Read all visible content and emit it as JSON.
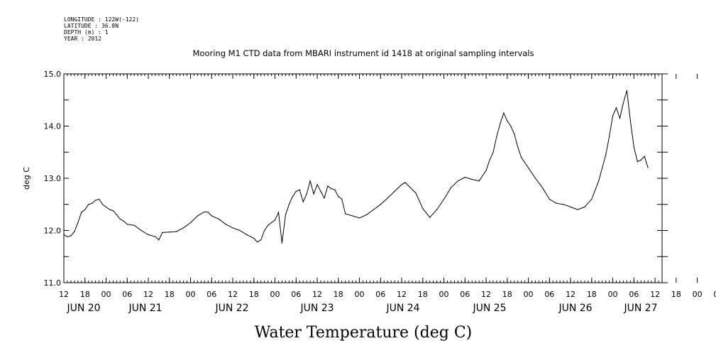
{
  "meta_lines": [
    "LONGITUDE : 122W(-122)",
    "LATITUDE : 36.8N",
    "DEPTH (m) : 1",
    "YEAR : 2012"
  ],
  "chart_data": {
    "type": "line",
    "title": "Mooring M1 CTD data from MBARI instrument id 1418 at original sampling intervals",
    "xlabel": "Water Temperature (deg C)",
    "ylabel": "deg C",
    "xlim": [
      "2012-06-20 12:00",
      "2012-06-27 14:00"
    ],
    "ylim": [
      11.0,
      15.0
    ],
    "y_ticks": [
      "11.0",
      "12.0",
      "13.0",
      "14.0",
      "15.0"
    ],
    "x_hour_ticks": [
      "12",
      "18",
      "00",
      "06",
      "12",
      "18",
      "00",
      "06",
      "12",
      "18",
      "00",
      "06",
      "12",
      "18",
      "00",
      "06",
      "12",
      "18",
      "00",
      "06",
      "12",
      "18",
      "00",
      "06",
      "12",
      "18",
      "00",
      "06",
      "12",
      "18",
      "00",
      "06"
    ],
    "x_day_labels": [
      "JUN 20",
      "JUN 21",
      "JUN 22",
      "JUN 23",
      "JUN 24",
      "JUN 25",
      "JUN 26",
      "JUN 27"
    ],
    "grid": false,
    "series": [
      {
        "values": [
          [
            "2012-06-20 12:00",
            11.92
          ],
          [
            "2012-06-20 13:00",
            11.88
          ],
          [
            "2012-06-20 14:00",
            11.9
          ],
          [
            "2012-06-20 15:00",
            11.98
          ],
          [
            "2012-06-20 16:00",
            12.15
          ],
          [
            "2012-06-20 17:00",
            12.35
          ],
          [
            "2012-06-20 18:00",
            12.4
          ],
          [
            "2012-06-20 19:00",
            12.5
          ],
          [
            "2012-06-20 20:00",
            12.52
          ],
          [
            "2012-06-20 21:00",
            12.58
          ],
          [
            "2012-06-20 22:00",
            12.6
          ],
          [
            "2012-06-20 23:00",
            12.5
          ],
          [
            "2012-06-21 00:00",
            12.45
          ],
          [
            "2012-06-21 01:00",
            12.4
          ],
          [
            "2012-06-21 02:00",
            12.38
          ],
          [
            "2012-06-21 03:00",
            12.3
          ],
          [
            "2012-06-21 04:00",
            12.22
          ],
          [
            "2012-06-21 05:00",
            12.18
          ],
          [
            "2012-06-21 06:00",
            12.12
          ],
          [
            "2012-06-21 08:00",
            12.1
          ],
          [
            "2012-06-21 10:00",
            12.0
          ],
          [
            "2012-06-21 12:00",
            11.92
          ],
          [
            "2012-06-21 14:00",
            11.88
          ],
          [
            "2012-06-21 15:00",
            11.82
          ],
          [
            "2012-06-21 16:00",
            11.96
          ],
          [
            "2012-06-21 18:00",
            11.97
          ],
          [
            "2012-06-21 20:00",
            11.98
          ],
          [
            "2012-06-21 22:00",
            12.05
          ],
          [
            "2012-06-22 00:00",
            12.15
          ],
          [
            "2012-06-22 02:00",
            12.28
          ],
          [
            "2012-06-22 04:00",
            12.36
          ],
          [
            "2012-06-22 05:00",
            12.35
          ],
          [
            "2012-06-22 06:00",
            12.28
          ],
          [
            "2012-06-22 08:00",
            12.22
          ],
          [
            "2012-06-22 10:00",
            12.12
          ],
          [
            "2012-06-22 12:00",
            12.05
          ],
          [
            "2012-06-22 14:00",
            12.0
          ],
          [
            "2012-06-22 16:00",
            11.92
          ],
          [
            "2012-06-22 18:00",
            11.85
          ],
          [
            "2012-06-22 19:00",
            11.78
          ],
          [
            "2012-06-22 20:00",
            11.82
          ],
          [
            "2012-06-22 21:00",
            12.0
          ],
          [
            "2012-06-22 22:00",
            12.1
          ],
          [
            "2012-06-23 00:00",
            12.2
          ],
          [
            "2012-06-23 01:00",
            12.35
          ],
          [
            "2012-06-23 02:00",
            11.76
          ],
          [
            "2012-06-23 03:00",
            12.3
          ],
          [
            "2012-06-23 04:00",
            12.5
          ],
          [
            "2012-06-23 05:00",
            12.65
          ],
          [
            "2012-06-23 06:00",
            12.75
          ],
          [
            "2012-06-23 07:00",
            12.78
          ],
          [
            "2012-06-23 08:00",
            12.55
          ],
          [
            "2012-06-23 09:00",
            12.7
          ],
          [
            "2012-06-23 10:00",
            12.95
          ],
          [
            "2012-06-23 11:00",
            12.7
          ],
          [
            "2012-06-23 12:00",
            12.88
          ],
          [
            "2012-06-23 13:00",
            12.75
          ],
          [
            "2012-06-23 14:00",
            12.62
          ],
          [
            "2012-06-23 15:00",
            12.85
          ],
          [
            "2012-06-23 16:00",
            12.8
          ],
          [
            "2012-06-23 17:00",
            12.78
          ],
          [
            "2012-06-23 18:00",
            12.65
          ],
          [
            "2012-06-23 19:00",
            12.6
          ],
          [
            "2012-06-23 20:00",
            12.32
          ],
          [
            "2012-06-23 22:00",
            12.28
          ],
          [
            "2012-06-24 00:00",
            12.24
          ],
          [
            "2012-06-24 02:00",
            12.3
          ],
          [
            "2012-06-24 04:00",
            12.4
          ],
          [
            "2012-06-24 06:00",
            12.5
          ],
          [
            "2012-06-24 08:00",
            12.62
          ],
          [
            "2012-06-24 10:00",
            12.75
          ],
          [
            "2012-06-24 12:00",
            12.88
          ],
          [
            "2012-06-24 13:00",
            12.92
          ],
          [
            "2012-06-24 14:00",
            12.85
          ],
          [
            "2012-06-24 16:00",
            12.72
          ],
          [
            "2012-06-24 18:00",
            12.42
          ],
          [
            "2012-06-24 20:00",
            12.25
          ],
          [
            "2012-06-24 22:00",
            12.4
          ],
          [
            "2012-06-25 00:00",
            12.6
          ],
          [
            "2012-06-25 02:00",
            12.82
          ],
          [
            "2012-06-25 04:00",
            12.95
          ],
          [
            "2012-06-25 06:00",
            13.02
          ],
          [
            "2012-06-25 08:00",
            12.98
          ],
          [
            "2012-06-25 10:00",
            12.95
          ],
          [
            "2012-06-25 12:00",
            13.15
          ],
          [
            "2012-06-25 13:00",
            13.35
          ],
          [
            "2012-06-25 14:00",
            13.5
          ],
          [
            "2012-06-25 15:00",
            13.8
          ],
          [
            "2012-06-25 16:00",
            14.05
          ],
          [
            "2012-06-25 17:00",
            14.25
          ],
          [
            "2012-06-25 18:00",
            14.1
          ],
          [
            "2012-06-25 19:00",
            14.0
          ],
          [
            "2012-06-25 20:00",
            13.85
          ],
          [
            "2012-06-25 21:00",
            13.6
          ],
          [
            "2012-06-25 22:00",
            13.4
          ],
          [
            "2012-06-26 00:00",
            13.2
          ],
          [
            "2012-06-26 02:00",
            13.0
          ],
          [
            "2012-06-26 04:00",
            12.82
          ],
          [
            "2012-06-26 06:00",
            12.6
          ],
          [
            "2012-06-26 08:00",
            12.52
          ],
          [
            "2012-06-26 10:00",
            12.5
          ],
          [
            "2012-06-26 12:00",
            12.45
          ],
          [
            "2012-06-26 14:00",
            12.4
          ],
          [
            "2012-06-26 16:00",
            12.45
          ],
          [
            "2012-06-26 18:00",
            12.6
          ],
          [
            "2012-06-26 20:00",
            12.95
          ],
          [
            "2012-06-26 22:00",
            13.45
          ],
          [
            "2012-06-26 23:00",
            13.8
          ],
          [
            "2012-06-27 00:00",
            14.2
          ],
          [
            "2012-06-27 01:00",
            14.35
          ],
          [
            "2012-06-27 02:00",
            14.15
          ],
          [
            "2012-06-27 03:00",
            14.45
          ],
          [
            "2012-06-27 04:00",
            14.68
          ],
          [
            "2012-06-27 05:00",
            14.1
          ],
          [
            "2012-06-27 06:00",
            13.6
          ],
          [
            "2012-06-27 07:00",
            13.32
          ],
          [
            "2012-06-27 08:00",
            13.35
          ],
          [
            "2012-06-27 09:00",
            13.42
          ],
          [
            "2012-06-27 10:00",
            13.2
          ]
        ]
      }
    ]
  }
}
